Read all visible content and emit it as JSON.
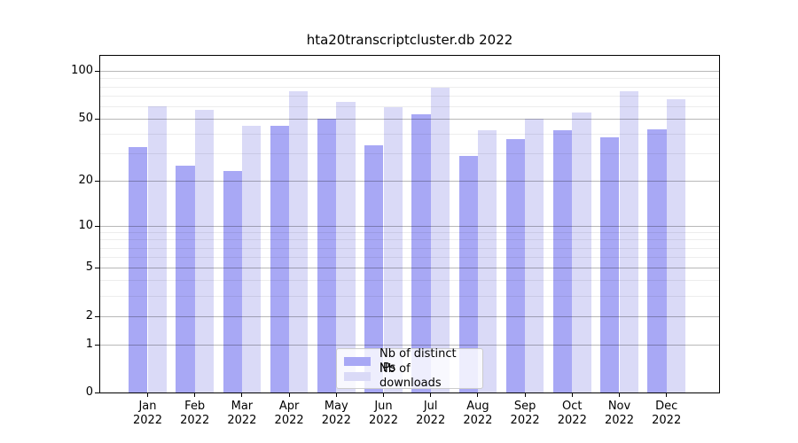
{
  "chart_data": {
    "type": "bar",
    "title": "hta20transcriptcluster.db 2022",
    "categories": [
      "Jan",
      "Feb",
      "Mar",
      "Apr",
      "May",
      "Jun",
      "Jul",
      "Aug",
      "Sep",
      "Oct",
      "Nov",
      "Dec"
    ],
    "category_year": "2022",
    "series": [
      {
        "name": "Nb of distinct IPs",
        "color": "#a8a8f5",
        "values": [
          33,
          25,
          23,
          45,
          50,
          34,
          53,
          29,
          37,
          42,
          38,
          43
        ]
      },
      {
        "name": "Nb of downloads",
        "color": "#dadaf7",
        "values": [
          60,
          57,
          45,
          75,
          64,
          59,
          79,
          42,
          50,
          55,
          75,
          66
        ]
      }
    ],
    "xlabel": "",
    "ylabel": "",
    "yscale": "log1p",
    "ylim": [
      0,
      127
    ],
    "yticks": [
      0,
      1,
      2,
      5,
      10,
      20,
      50,
      100
    ],
    "minor_gridlines": [
      3,
      4,
      6,
      7,
      8,
      9,
      30,
      40,
      60,
      70,
      80,
      90
    ],
    "grid": true,
    "legend_position": "lower center"
  }
}
